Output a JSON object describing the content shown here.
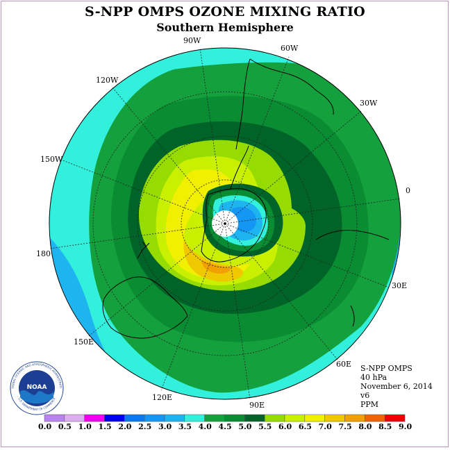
{
  "title": "S-NPP OMPS OZONE MIXING RATIO",
  "subtitle": "Southern Hemisphere",
  "longitude_labels": [
    "90W",
    "60W",
    "30W",
    "0",
    "30E",
    "60E",
    "90E",
    "120E",
    "150E",
    "180",
    "150W",
    "120W"
  ],
  "info": {
    "instrument": "S-NPP OMPS",
    "level": "40 hPa",
    "date": "November 6, 2014",
    "version": "v6",
    "units": "PPM"
  },
  "logo": {
    "text": "NOAA",
    "ring_text": "NATIONAL OCEANIC AND ATMOSPHERIC ADMINISTRATION",
    "ring_text_bottom": "U.S. DEPARTMENT OF COMMERCE"
  },
  "colorbar": {
    "ticks": [
      "0.0",
      "0.5",
      "1.0",
      "1.5",
      "2.0",
      "2.5",
      "3.0",
      "3.5",
      "4.0",
      "4.5",
      "5.0",
      "5.5",
      "6.0",
      "6.5",
      "7.0",
      "7.5",
      "8.0",
      "8.5",
      "9.0"
    ],
    "colors": [
      "#b883ee",
      "#dcaef0",
      "#f000f0",
      "#0000f0",
      "#0a78f0",
      "#1496f5",
      "#1eb4f0",
      "#32f0dc",
      "#14a03c",
      "#0a8c32",
      "#006428",
      "#96dc00",
      "#c8f000",
      "#f0f000",
      "#f0c800",
      "#f0a000",
      "#f06400",
      "#f00000",
      "#8c5a3c"
    ]
  },
  "map_colors": {
    "level_3_5": "#32f0dc",
    "level_3_0": "#1eb4f0",
    "level_4_0": "#14a03c",
    "level_4_5": "#0a8c32",
    "level_5_0": "#006428",
    "level_5_5": "#96dc00",
    "level_6_0": "#c8f000",
    "level_6_5": "#f0f000",
    "level_7_0": "#f0c800",
    "level_7_5": "#f0a000",
    "inner_3_0": "#1eb4f0",
    "inner_2_5": "#1496f5",
    "pole_missing": "#ffffff"
  }
}
